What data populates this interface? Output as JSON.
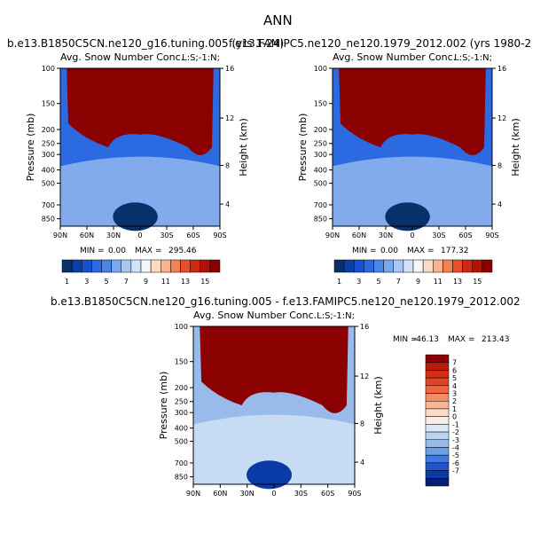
{
  "page_title": "ANN",
  "chart_data": [
    {
      "type": "heatmap",
      "header": "b.e13.B1850C5CN.ne120_g16.tuning.005 (yrs 1-24)",
      "title": "Avg. Snow Number Conc.",
      "units": "L:S;-1:N;",
      "ylabel": "Pressure (mb)",
      "y2label": "Height (km)",
      "xticks": [
        "90N",
        "60N",
        "30N",
        "0",
        "30S",
        "60S",
        "90S"
      ],
      "yticks": [
        "100",
        "150",
        "200",
        "250",
        "300",
        "400",
        "500",
        "700",
        "850"
      ],
      "y2ticks": [
        "16",
        "12",
        "8",
        "4"
      ],
      "min_label": "MIN =",
      "min_value": "0.00",
      "max_label": "MAX =",
      "max_value": "295.46",
      "colorbar": {
        "labels": [
          "1",
          "3",
          "5",
          "7",
          "9",
          "11",
          "13",
          "15"
        ],
        "colors": [
          "#08306b",
          "#0b3fa8",
          "#1651d0",
          "#2b6ae0",
          "#4a86e8",
          "#78a8ee",
          "#a8c8f3",
          "#d2e2f8",
          "#f6f6f6",
          "#fbd9c3",
          "#f8b48c",
          "#f18253",
          "#e3502a",
          "#cf2813",
          "#b0120a",
          "#8b0000"
        ]
      }
    },
    {
      "type": "heatmap",
      "header": "f.e13.FAMIPC5.ne120_ne120.1979_2012.002 (yrs 1980-2",
      "title": "Avg. Snow Number Conc.",
      "units": "L:S;-1:N;",
      "ylabel": "Pressure (mb)",
      "y2label": "Height (km)",
      "xticks": [
        "90N",
        "60N",
        "30N",
        "0",
        "30S",
        "60S",
        "90S"
      ],
      "yticks": [
        "100",
        "150",
        "200",
        "250",
        "300",
        "400",
        "500",
        "700",
        "850"
      ],
      "y2ticks": [
        "16",
        "12",
        "8",
        "4"
      ],
      "min_label": "MIN =",
      "min_value": "0.00",
      "max_label": "MAX =",
      "max_value": "177.32",
      "colorbar": {
        "labels": [
          "1",
          "3",
          "5",
          "7",
          "9",
          "11",
          "13",
          "15"
        ],
        "colors": [
          "#08306b",
          "#0b3fa8",
          "#1651d0",
          "#2b6ae0",
          "#4a86e8",
          "#78a8ee",
          "#a8c8f3",
          "#d2e2f8",
          "#f6f6f6",
          "#fbd9c3",
          "#f8b48c",
          "#f18253",
          "#e3502a",
          "#cf2813",
          "#b0120a",
          "#8b0000"
        ]
      }
    },
    {
      "type": "heatmap",
      "header": "b.e13.B1850C5CN.ne120_g16.tuning.005 - f.e13.FAMIPC5.ne120_ne120.1979_2012.002",
      "title": "Avg. Snow Number Conc.",
      "units": "L:S;-1:N;",
      "ylabel": "Pressure (mb)",
      "y2label": "Height (km)",
      "xticks": [
        "90N",
        "60N",
        "30N",
        "0",
        "30S",
        "60S",
        "90S"
      ],
      "yticks": [
        "100",
        "150",
        "200",
        "250",
        "300",
        "400",
        "500",
        "700",
        "850"
      ],
      "y2ticks": [
        "16",
        "12",
        "8",
        "4"
      ],
      "min_label": "MIN =",
      "min_value": "-46.13",
      "max_label": "MAX =",
      "max_value": "213.43",
      "colorbar": {
        "labels": [
          "7",
          "6",
          "5",
          "4",
          "3",
          "2",
          "1",
          "0",
          "-1",
          "-2",
          "-3",
          "-4",
          "-5",
          "-6",
          "-7"
        ],
        "colors": [
          "#8b0000",
          "#b81a0c",
          "#d32c17",
          "#e44324",
          "#ee6540",
          "#f58c66",
          "#f9b595",
          "#fcdcc8",
          "#f9eee6",
          "#dce9f7",
          "#bcd3f2",
          "#98bbec",
          "#6e9ee5",
          "#4279dc",
          "#1e55cb",
          "#0a3aa6",
          "#061f6e"
        ]
      }
    }
  ]
}
